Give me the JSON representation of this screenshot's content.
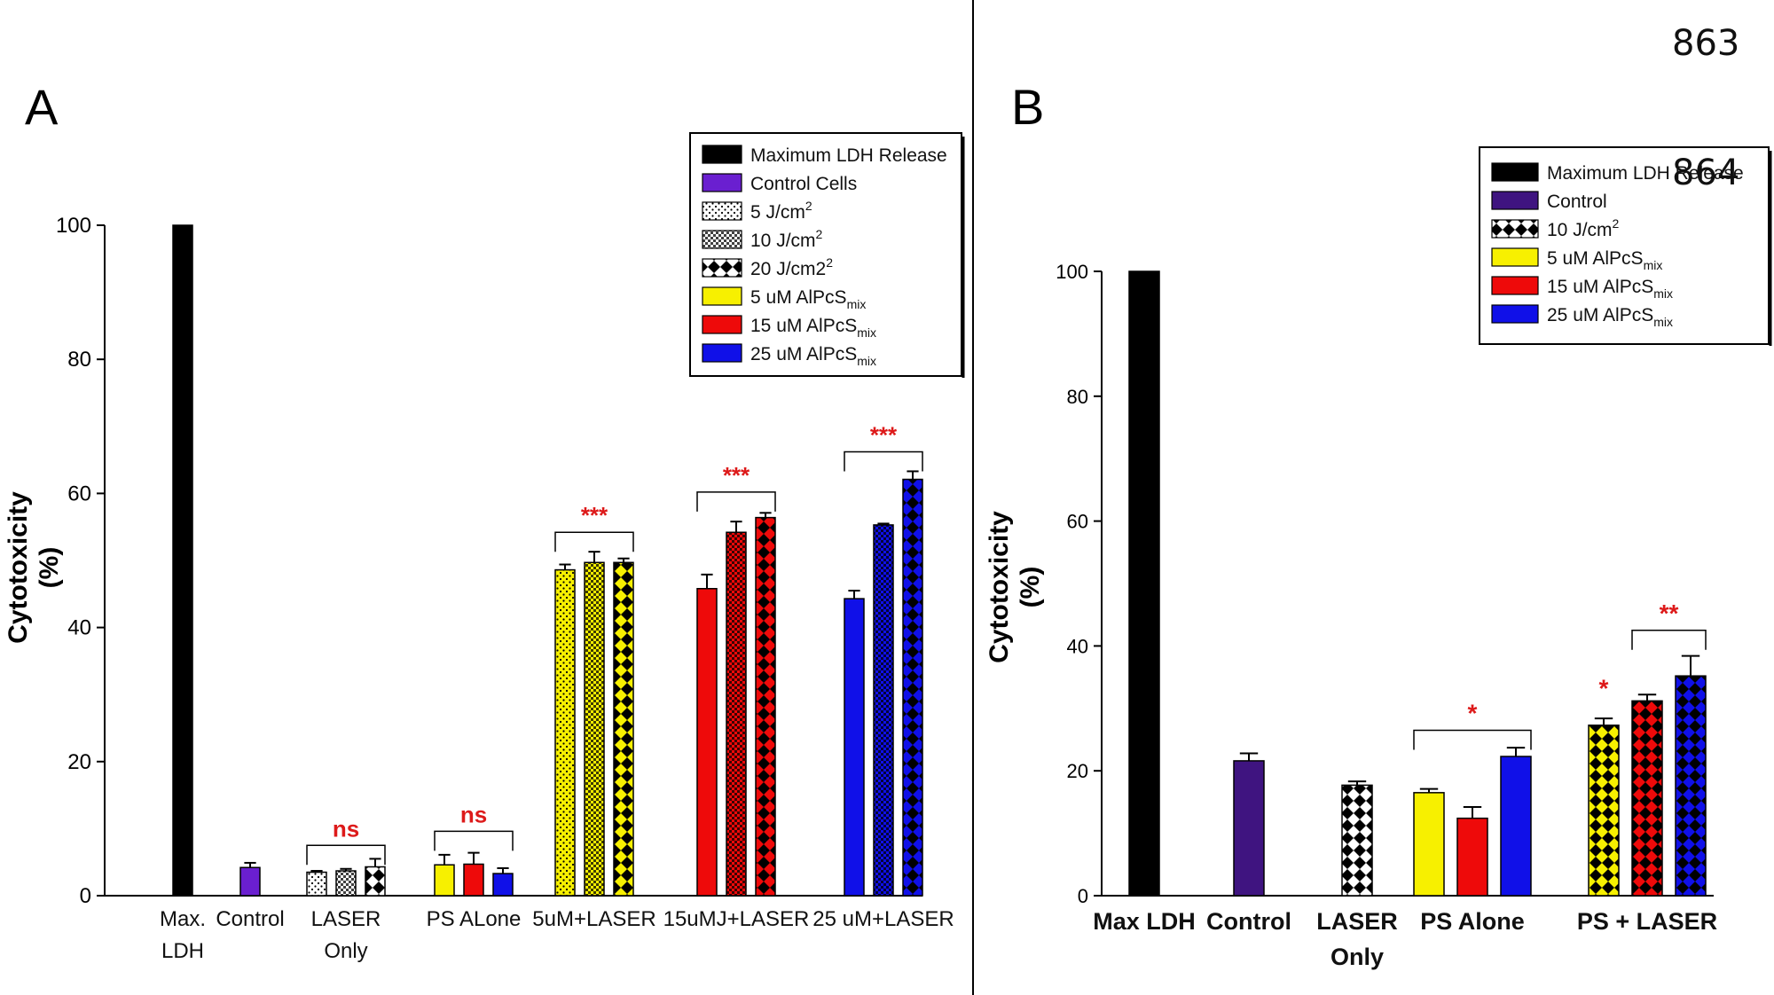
{
  "page": {
    "number_top": "863",
    "number_overlay": "864"
  },
  "colors": {
    "black": "#000000",
    "purple": "#6a1fd0",
    "purple_dark": "#3f1480",
    "yellow": "#f7f000",
    "red": "#ee0a0a",
    "blue": "#1010e8",
    "sig_red": "#dd1a1a",
    "grey": "#d8d8d8"
  },
  "chart_data": [
    {
      "type": "bar",
      "panel_label": "A",
      "ylabel": "Cytotoxicity (%)",
      "ylabel_line1": "Cytotoxicity",
      "ylabel_line2": "(%)",
      "ylim": [
        0,
        100
      ],
      "yticks": [
        "0",
        "20",
        "40",
        "60",
        "80",
        "100"
      ],
      "categories": [
        {
          "label": "Max.\nLDH"
        },
        {
          "label": "Control"
        },
        {
          "label": "LASER\nOnly"
        },
        {
          "label": "PS ALone"
        },
        {
          "label": "5uM+LASER"
        },
        {
          "label": "15uMJ+LASER"
        },
        {
          "label": "25 uM+LASER"
        }
      ],
      "bars": [
        {
          "group": 0,
          "value": 100,
          "error": 0,
          "color": "black",
          "pattern": "solid"
        },
        {
          "group": 1,
          "value": 4.2,
          "error": 0.7,
          "color": "purple",
          "pattern": "solid"
        },
        {
          "group": 2,
          "value": 3.5,
          "error": 0.2,
          "color": "white",
          "pattern": "dots"
        },
        {
          "group": 2,
          "value": 3.7,
          "error": 0.3,
          "color": "white",
          "pattern": "dense"
        },
        {
          "group": 2,
          "value": 4.3,
          "error": 1.2,
          "color": "white",
          "pattern": "diamonds"
        },
        {
          "group": 3,
          "value": 4.6,
          "error": 1.5,
          "color": "yellow",
          "pattern": "solid"
        },
        {
          "group": 3,
          "value": 4.7,
          "error": 1.7,
          "color": "red",
          "pattern": "solid"
        },
        {
          "group": 3,
          "value": 3.3,
          "error": 0.8,
          "color": "blue",
          "pattern": "solid"
        },
        {
          "group": 4,
          "value": 48.6,
          "error": 0.8,
          "color": "yellow",
          "pattern": "dots"
        },
        {
          "group": 4,
          "value": 49.7,
          "error": 1.6,
          "color": "yellow",
          "pattern": "dense"
        },
        {
          "group": 4,
          "value": 49.7,
          "error": 0.6,
          "color": "yellow",
          "pattern": "diamonds"
        },
        {
          "group": 5,
          "value": 45.8,
          "error": 2.1,
          "color": "red",
          "pattern": "solid"
        },
        {
          "group": 5,
          "value": 54.2,
          "error": 1.6,
          "color": "red",
          "pattern": "dense"
        },
        {
          "group": 5,
          "value": 56.4,
          "error": 0.7,
          "color": "red",
          "pattern": "diamonds"
        },
        {
          "group": 6,
          "value": 44.3,
          "error": 1.2,
          "color": "blue",
          "pattern": "solid"
        },
        {
          "group": 6,
          "value": 55.3,
          "error": 0.2,
          "color": "blue",
          "pattern": "dense"
        },
        {
          "group": 6,
          "value": 62.1,
          "error": 1.2,
          "color": "blue",
          "pattern": "diamonds"
        }
      ],
      "significance": [
        {
          "label": "ns",
          "from_bar": 2,
          "to_bar": 4,
          "y": 7.5
        },
        {
          "label": "ns",
          "from_bar": 5,
          "to_bar": 7,
          "y": 9.6
        },
        {
          "label": "***",
          "from_bar": 8,
          "to_bar": 10,
          "y": 54.2
        },
        {
          "label": "***",
          "from_bar": 11,
          "to_bar": 13,
          "y": 60.2
        },
        {
          "label": "***",
          "from_bar": 14,
          "to_bar": 16,
          "y": 66.2
        }
      ],
      "legend_position": "top-right",
      "legend": [
        {
          "text": "Maximum LDH Release",
          "color": "black",
          "pattern": "solid"
        },
        {
          "text": "Control Cells",
          "color": "purple",
          "pattern": "solid"
        },
        {
          "text": "5 J/cm",
          "sup": "2",
          "color": "white",
          "pattern": "dots"
        },
        {
          "text": "10 J/cm",
          "sup": "2",
          "color": "white",
          "pattern": "dense"
        },
        {
          "text": "20 J/cm2",
          "sup": "2",
          "color": "white",
          "pattern": "diamonds"
        },
        {
          "text": "5 uM AlPcS",
          "sub": "mix",
          "color": "yellow",
          "pattern": "solid"
        },
        {
          "text": "15 uM AlPcS",
          "sub": "mix",
          "color": "red",
          "pattern": "solid"
        },
        {
          "text": "25 uM AlPcS",
          "sub": "mix",
          "color": "blue",
          "pattern": "solid"
        }
      ]
    },
    {
      "type": "bar",
      "panel_label": "B",
      "ylabel": "Cytotoxicity (%)",
      "ylabel_line1": "Cytotoxicity",
      "ylabel_line2": "(%)",
      "ylim": [
        0,
        100
      ],
      "yticks": [
        "0",
        "20",
        "40",
        "60",
        "80",
        "100"
      ],
      "categories": [
        {
          "label": "Max LDH"
        },
        {
          "label": "Control"
        },
        {
          "label": "LASER\nOnly"
        },
        {
          "label": "PS Alone"
        },
        {
          "label": "PS + LASER"
        }
      ],
      "bars": [
        {
          "group": 0,
          "value": 100,
          "error": 0,
          "color": "black",
          "pattern": "solid"
        },
        {
          "group": 1,
          "value": 21.6,
          "error": 1.2,
          "color": "purple_dark",
          "pattern": "solid"
        },
        {
          "group": 2,
          "value": 17.7,
          "error": 0.6,
          "color": "white",
          "pattern": "diamonds"
        },
        {
          "group": 3,
          "value": 16.5,
          "error": 0.6,
          "color": "yellow",
          "pattern": "solid"
        },
        {
          "group": 3,
          "value": 12.4,
          "error": 1.8,
          "color": "red",
          "pattern": "solid"
        },
        {
          "group": 3,
          "value": 22.3,
          "error": 1.4,
          "color": "blue",
          "pattern": "solid"
        },
        {
          "group": 4,
          "value": 27.3,
          "error": 1.1,
          "color": "yellow",
          "pattern": "diamonds"
        },
        {
          "group": 4,
          "value": 31.2,
          "error": 1.0,
          "color": "red",
          "pattern": "diamonds"
        },
        {
          "group": 4,
          "value": 35.2,
          "error": 3.2,
          "color": "blue",
          "pattern": "diamonds"
        }
      ],
      "significance": [
        {
          "label": "*",
          "from_bar": 3,
          "to_bar": 5,
          "y": 26.5,
          "bracket": true
        },
        {
          "label": "*",
          "from_bar": 6,
          "to_bar": 6,
          "y": 30.5,
          "bracket": false
        },
        {
          "label": "**",
          "from_bar": 7,
          "to_bar": 8,
          "y": 42.5,
          "bracket": true
        }
      ],
      "legend_position": "top-right",
      "legend": [
        {
          "text": "Maximum LDH Release",
          "color": "black",
          "pattern": "solid"
        },
        {
          "text": "Control",
          "color": "purple_dark",
          "pattern": "solid"
        },
        {
          "text": "10 J/cm",
          "sup": "2",
          "color": "white",
          "pattern": "diamonds"
        },
        {
          "text": "5 uM AlPcS",
          "sub": "mix",
          "color": "yellow",
          "pattern": "solid"
        },
        {
          "text": "15 uM AlPcS",
          "sub": "mix",
          "color": "red",
          "pattern": "solid"
        },
        {
          "text": "25 uM AlPcS",
          "sub": "mix",
          "color": "blue",
          "pattern": "solid"
        }
      ]
    }
  ]
}
